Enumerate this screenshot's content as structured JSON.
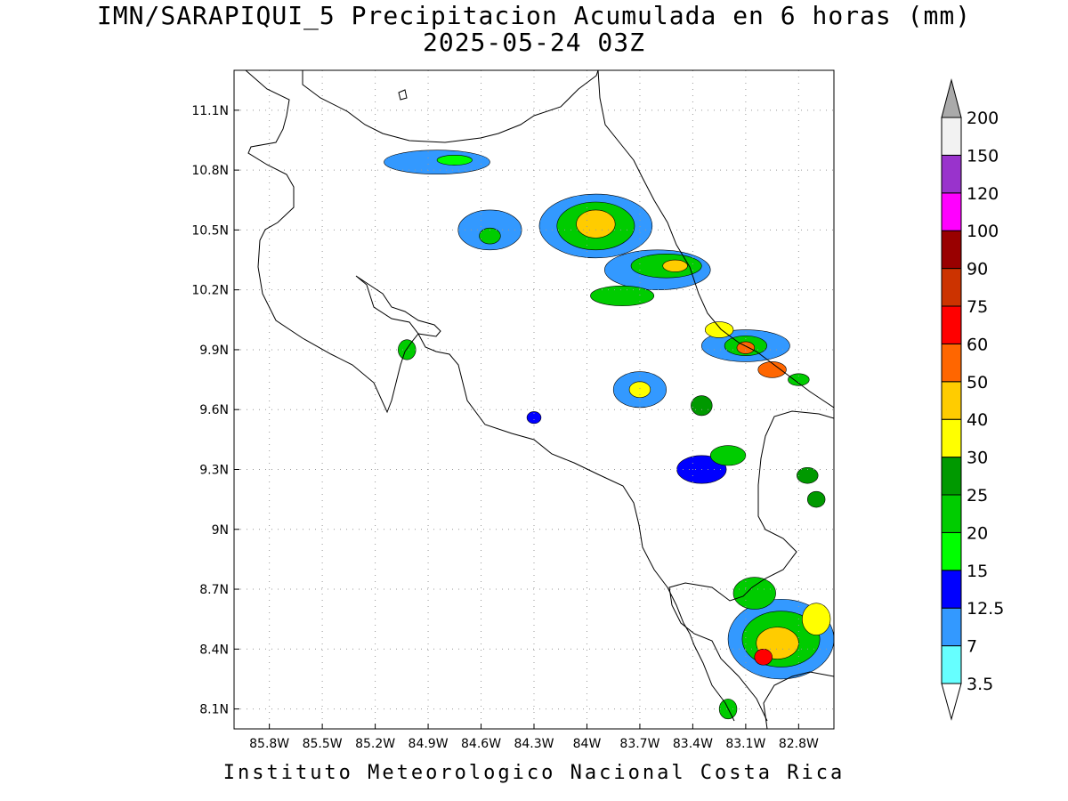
{
  "header": {
    "title": "IMN/SARAPIQUI_5 Precipitacion Acumulada en 6 horas (mm)",
    "subtitle": "2025-05-24 03Z"
  },
  "footer": {
    "credit": "Instituto Meteorologico Nacional Costa Rica"
  },
  "map": {
    "lon_range": [
      -86.0,
      -82.6
    ],
    "lat_range": [
      8.0,
      11.3
    ],
    "lon_ticks": [
      {
        "value": -85.8,
        "label": "85.8W"
      },
      {
        "value": -85.5,
        "label": "85.5W"
      },
      {
        "value": -85.2,
        "label": "85.2W"
      },
      {
        "value": -84.9,
        "label": "84.9W"
      },
      {
        "value": -84.6,
        "label": "84.6W"
      },
      {
        "value": -84.3,
        "label": "84.3W"
      },
      {
        "value": -84.0,
        "label": "84W"
      },
      {
        "value": -83.7,
        "label": "83.7W"
      },
      {
        "value": -83.4,
        "label": "83.4W"
      },
      {
        "value": -83.1,
        "label": "83.1W"
      },
      {
        "value": -82.8,
        "label": "82.8W"
      }
    ],
    "lat_ticks": [
      {
        "value": 8.1,
        "label": "8.1N"
      },
      {
        "value": 8.4,
        "label": "8.4N"
      },
      {
        "value": 8.7,
        "label": "8.7N"
      },
      {
        "value": 9.0,
        "label": "9N"
      },
      {
        "value": 9.3,
        "label": "9.3N"
      },
      {
        "value": 9.6,
        "label": "9.6N"
      },
      {
        "value": 9.9,
        "label": "9.9N"
      },
      {
        "value": 10.2,
        "label": "10.2N"
      },
      {
        "value": 10.5,
        "label": "10.5N"
      },
      {
        "value": 10.8,
        "label": "10.8N"
      },
      {
        "value": 11.1,
        "label": "11.1N"
      }
    ],
    "grid": true
  },
  "colorbar": {
    "levels": [
      {
        "label": "3.5",
        "color": "#66ffff"
      },
      {
        "label": "7",
        "color": "#3399ff"
      },
      {
        "label": "12.5",
        "color": "#0000ff"
      },
      {
        "label": "15",
        "color": "#00ff00"
      },
      {
        "label": "20",
        "color": "#00cc00"
      },
      {
        "label": "25",
        "color": "#009900"
      },
      {
        "label": "30",
        "color": "#ffff00"
      },
      {
        "label": "40",
        "color": "#ffcc00"
      },
      {
        "label": "50",
        "color": "#ff6600"
      },
      {
        "label": "60",
        "color": "#ff0000"
      },
      {
        "label": "75",
        "color": "#cc3300"
      },
      {
        "label": "90",
        "color": "#990000"
      },
      {
        "label": "100",
        "color": "#ff00ff"
      },
      {
        "label": "120",
        "color": "#9933cc"
      },
      {
        "label": "150",
        "color": "#f2f2f2"
      },
      {
        "label": "200",
        "color": "#aaaaaa"
      }
    ],
    "under_color": "#ffffff",
    "over_color": "#aaaaaa"
  },
  "precip_cells": [
    {
      "lon": -84.85,
      "lat": 10.84,
      "rx": 0.3,
      "ry": 0.06,
      "level": 1
    },
    {
      "lon": -84.75,
      "lat": 10.85,
      "rx": 0.1,
      "ry": 0.025,
      "level": 3
    },
    {
      "lon": -84.55,
      "lat": 10.5,
      "rx": 0.18,
      "ry": 0.1,
      "level": 1
    },
    {
      "lon": -84.55,
      "lat": 10.47,
      "rx": 0.06,
      "ry": 0.04,
      "level": 4
    },
    {
      "lon": -83.95,
      "lat": 10.52,
      "rx": 0.32,
      "ry": 0.16,
      "level": 1
    },
    {
      "lon": -83.95,
      "lat": 10.52,
      "rx": 0.22,
      "ry": 0.12,
      "level": 4
    },
    {
      "lon": -83.95,
      "lat": 10.53,
      "rx": 0.11,
      "ry": 0.07,
      "level": 7
    },
    {
      "lon": -83.6,
      "lat": 10.3,
      "rx": 0.3,
      "ry": 0.1,
      "level": 1
    },
    {
      "lon": -83.55,
      "lat": 10.32,
      "rx": 0.2,
      "ry": 0.06,
      "level": 4
    },
    {
      "lon": -83.5,
      "lat": 10.32,
      "rx": 0.07,
      "ry": 0.03,
      "level": 7
    },
    {
      "lon": -83.8,
      "lat": 10.17,
      "rx": 0.18,
      "ry": 0.05,
      "level": 4
    },
    {
      "lon": -83.1,
      "lat": 9.92,
      "rx": 0.25,
      "ry": 0.08,
      "level": 1
    },
    {
      "lon": -83.1,
      "lat": 9.92,
      "rx": 0.12,
      "ry": 0.05,
      "level": 4
    },
    {
      "lon": -83.1,
      "lat": 9.91,
      "rx": 0.05,
      "ry": 0.03,
      "level": 8
    },
    {
      "lon": -83.25,
      "lat": 10.0,
      "rx": 0.08,
      "ry": 0.04,
      "level": 6
    },
    {
      "lon": -82.95,
      "lat": 9.8,
      "rx": 0.08,
      "ry": 0.04,
      "level": 8
    },
    {
      "lon": -82.8,
      "lat": 9.75,
      "rx": 0.06,
      "ry": 0.03,
      "level": 4
    },
    {
      "lon": -83.7,
      "lat": 9.7,
      "rx": 0.15,
      "ry": 0.09,
      "level": 1
    },
    {
      "lon": -83.7,
      "lat": 9.7,
      "rx": 0.06,
      "ry": 0.04,
      "level": 6
    },
    {
      "lon": -83.35,
      "lat": 9.62,
      "rx": 0.06,
      "ry": 0.05,
      "level": 5
    },
    {
      "lon": -83.35,
      "lat": 9.3,
      "rx": 0.14,
      "ry": 0.07,
      "level": 2
    },
    {
      "lon": -83.2,
      "lat": 9.37,
      "rx": 0.1,
      "ry": 0.05,
      "level": 4
    },
    {
      "lon": -82.75,
      "lat": 9.27,
      "rx": 0.06,
      "ry": 0.04,
      "level": 5
    },
    {
      "lon": -82.7,
      "lat": 9.15,
      "rx": 0.05,
      "ry": 0.04,
      "level": 5
    },
    {
      "lon": -85.02,
      "lat": 9.9,
      "rx": 0.05,
      "ry": 0.05,
      "level": 4
    },
    {
      "lon": -84.3,
      "lat": 9.56,
      "rx": 0.04,
      "ry": 0.03,
      "level": 2
    },
    {
      "lon": -82.9,
      "lat": 8.45,
      "rx": 0.3,
      "ry": 0.2,
      "level": 1
    },
    {
      "lon": -82.9,
      "lat": 8.45,
      "rx": 0.22,
      "ry": 0.14,
      "level": 4
    },
    {
      "lon": -82.92,
      "lat": 8.43,
      "rx": 0.12,
      "ry": 0.08,
      "level": 7
    },
    {
      "lon": -83.0,
      "lat": 8.36,
      "rx": 0.05,
      "ry": 0.04,
      "level": 9
    },
    {
      "lon": -83.05,
      "lat": 8.68,
      "rx": 0.12,
      "ry": 0.08,
      "level": 4
    },
    {
      "lon": -82.7,
      "lat": 8.55,
      "rx": 0.08,
      "ry": 0.08,
      "level": 6
    },
    {
      "lon": -83.2,
      "lat": 8.1,
      "rx": 0.05,
      "ry": 0.05,
      "level": 4
    }
  ]
}
